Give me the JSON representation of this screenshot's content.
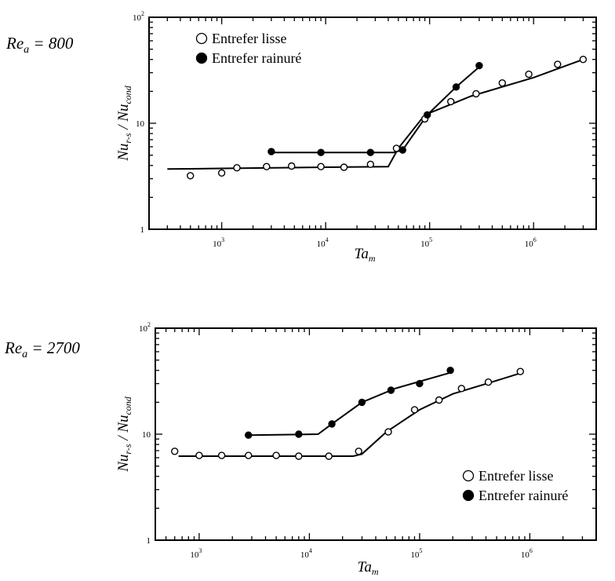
{
  "chart_data": [
    {
      "type": "line",
      "title": "Re",
      "title_sub": "a",
      "title_value": " = 800",
      "ylabel": "Nu",
      "ylabel_sub": "r-s",
      "ylabel_sep": " / Nu",
      "ylabel_sub2": "cond",
      "xlabel": "Ta",
      "xlabel_sub": "m",
      "xscale": "log",
      "yscale": "log",
      "xlim": [
        200,
        4000000
      ],
      "ylim": [
        1,
        100
      ],
      "x_tick_labels": [
        {
          "base": "10",
          "exp": "3",
          "value": 1000
        },
        {
          "base": "10",
          "exp": "4",
          "value": 10000
        },
        {
          "base": "10",
          "exp": "5",
          "value": 100000
        },
        {
          "base": "10",
          "exp": "6",
          "value": 1000000
        }
      ],
      "y_tick_labels": [
        {
          "base": "1",
          "exp": "",
          "value": 1
        },
        {
          "base": "10",
          "exp": "",
          "value": 10
        },
        {
          "base": "10",
          "exp": "2",
          "value": 100
        }
      ],
      "legend_position": "top-left",
      "series": [
        {
          "name": "Entrefer lisse",
          "marker": "open-circle",
          "points": [
            [
              500,
              3.2
            ],
            [
              1000,
              3.4
            ],
            [
              1400,
              3.8
            ],
            [
              2700,
              3.9
            ],
            [
              4700,
              3.95
            ],
            [
              9000,
              3.9
            ],
            [
              15000,
              3.85
            ],
            [
              27000,
              4.1
            ],
            [
              48000,
              5.8
            ],
            [
              90000,
              11
            ],
            [
              160000,
              16
            ],
            [
              280000,
              19
            ],
            [
              500000,
              24
            ],
            [
              900000,
              29
            ],
            [
              1700000,
              36
            ],
            [
              3000000,
              40
            ]
          ],
          "curve": [
            [
              300,
              3.7
            ],
            [
              1000,
              3.75
            ],
            [
              10000,
              3.85
            ],
            [
              40000,
              3.9
            ],
            [
              50000,
              5.8
            ],
            [
              90000,
              12
            ],
            [
              250000,
              18
            ],
            [
              1000000,
              27
            ],
            [
              3000000,
              40
            ]
          ]
        },
        {
          "name": "Entrefer rainuré",
          "marker": "filled-circle",
          "points": [
            [
              3000,
              5.4
            ],
            [
              9000,
              5.3
            ],
            [
              27000,
              5.3
            ],
            [
              55000,
              5.6
            ],
            [
              95000,
              12
            ],
            [
              180000,
              22
            ],
            [
              300000,
              35
            ]
          ],
          "curve": [
            [
              3000,
              5.3
            ],
            [
              45000,
              5.3
            ],
            [
              55000,
              5.6
            ],
            [
              95000,
              12
            ],
            [
              180000,
              22
            ],
            [
              300000,
              34
            ]
          ]
        }
      ]
    },
    {
      "type": "line",
      "title": "Re",
      "title_sub": "a",
      "title_value": " = 2700",
      "ylabel": "Nu",
      "ylabel_sub": "r-s",
      "ylabel_sep": " / Nu",
      "ylabel_sub2": "cond",
      "xlabel": "Ta",
      "xlabel_sub": "m",
      "xscale": "log",
      "yscale": "log",
      "xlim": [
        400,
        4000000
      ],
      "ylim": [
        1,
        100
      ],
      "x_tick_labels": [
        {
          "base": "10",
          "exp": "3",
          "value": 1000
        },
        {
          "base": "10",
          "exp": "4",
          "value": 10000
        },
        {
          "base": "10",
          "exp": "5",
          "value": 100000
        },
        {
          "base": "10",
          "exp": "6",
          "value": 1000000
        }
      ],
      "y_tick_labels": [
        {
          "base": "1",
          "exp": "",
          "value": 1
        },
        {
          "base": "10",
          "exp": "",
          "value": 10
        },
        {
          "base": "10",
          "exp": "2",
          "value": 100
        }
      ],
      "legend_position": "bottom-right",
      "series": [
        {
          "name": "Entrefer lisse",
          "marker": "open-circle",
          "points": [
            [
              600,
              6.9
            ],
            [
              1000,
              6.3
            ],
            [
              1600,
              6.3
            ],
            [
              2800,
              6.3
            ],
            [
              5000,
              6.3
            ],
            [
              8000,
              6.2
            ],
            [
              15000,
              6.2
            ],
            [
              28000,
              6.9
            ],
            [
              52000,
              10.5
            ],
            [
              90000,
              17
            ],
            [
              150000,
              21
            ],
            [
              240000,
              27
            ],
            [
              420000,
              31
            ],
            [
              820000,
              39
            ]
          ],
          "curve": [
            [
              650,
              6.2
            ],
            [
              10000,
              6.2
            ],
            [
              25000,
              6.2
            ],
            [
              30000,
              6.5
            ],
            [
              50000,
              10.5
            ],
            [
              100000,
              17
            ],
            [
              200000,
              24
            ],
            [
              450000,
              31
            ],
            [
              850000,
              38
            ]
          ]
        },
        {
          "name": "Entrefer rainuré",
          "marker": "filled-circle",
          "points": [
            [
              2800,
              9.8
            ],
            [
              8000,
              10
            ],
            [
              16000,
              12.5
            ],
            [
              30000,
              20
            ],
            [
              55000,
              26
            ],
            [
              100000,
              30
            ],
            [
              190000,
              40
            ]
          ],
          "curve": [
            [
              2800,
              9.8
            ],
            [
              12000,
              10
            ],
            [
              16000,
              12.5
            ],
            [
              30000,
              20
            ],
            [
              60000,
              27
            ],
            [
              190000,
              38
            ]
          ]
        }
      ]
    }
  ]
}
